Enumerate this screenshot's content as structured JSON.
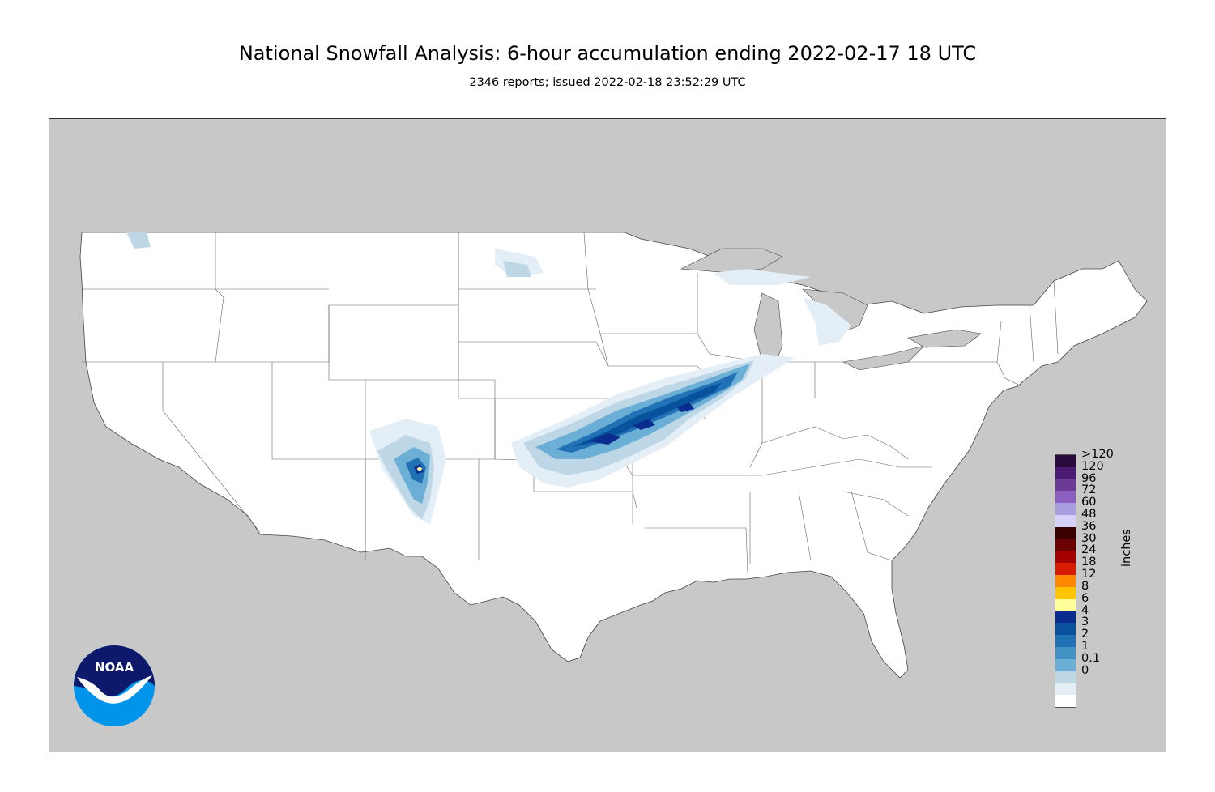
{
  "title": "National Snowfall Analysis: 6-hour accumulation ending 2022-02-17 18 UTC",
  "subtitle": "2346 reports; issued 2022-02-18 23:52:29 UTC",
  "map": {
    "region": "CONUS",
    "background_color": "#c8c8c8",
    "land_color": "#ffffff",
    "border_color": "#555555"
  },
  "legend": {
    "unit": "inches",
    "bins": [
      {
        "label": ">120",
        "color": "#2b0a3d"
      },
      {
        "label": "120",
        "color": "#4b1a72"
      },
      {
        "label": "96",
        "color": "#6b3b97"
      },
      {
        "label": "72",
        "color": "#8a5fbf"
      },
      {
        "label": "60",
        "color": "#a99ee0"
      },
      {
        "label": "48",
        "color": "#d4d0fa"
      },
      {
        "label": "36",
        "color": "#3b0000"
      },
      {
        "label": "30",
        "color": "#6b0000"
      },
      {
        "label": "24",
        "color": "#a50000"
      },
      {
        "label": "18",
        "color": "#d81c00"
      },
      {
        "label": "12",
        "color": "#ff8800"
      },
      {
        "label": "8",
        "color": "#ffc400"
      },
      {
        "label": "6",
        "color": "#ffff99"
      },
      {
        "label": "4",
        "color": "#0b2c8f"
      },
      {
        "label": "3",
        "color": "#08519c"
      },
      {
        "label": "2",
        "color": "#2171b5"
      },
      {
        "label": "1",
        "color": "#4292c6"
      },
      {
        "label": "0.1",
        "color": "#6baed6"
      },
      {
        "label": "0",
        "color": "#bdd7e7"
      },
      {
        "label": "",
        "color": "#e4eef7"
      },
      {
        "label": "",
        "color": "#ffffff"
      }
    ]
  },
  "logo": {
    "text": "NOAA",
    "colors": [
      "#0d1a6b",
      "#0095eb"
    ]
  }
}
